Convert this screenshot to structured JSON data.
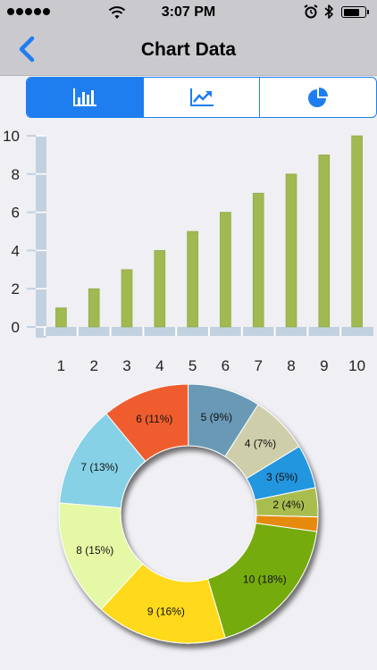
{
  "status_bar": {
    "time": "3:07 PM",
    "signal_bars": 5,
    "battery_level": 0.75,
    "icons": [
      "signal-dots-icon",
      "wifi-icon",
      "alarm-icon",
      "bluetooth-icon",
      "battery-icon"
    ]
  },
  "nav": {
    "title": "Chart Data",
    "back_icon": "chevron-left-icon"
  },
  "segmented_control": {
    "segments": [
      {
        "icon": "bar-chart-icon",
        "selected": true
      },
      {
        "icon": "line-chart-icon",
        "selected": false
      },
      {
        "icon": "pie-chart-icon",
        "selected": false
      }
    ]
  },
  "colors": {
    "accent": "#1e7ef0",
    "bar": "#a0b950",
    "axis": "#c2d1e0",
    "background": "#efeff4"
  },
  "chart_data": [
    {
      "type": "bar",
      "categories": [
        "1",
        "2",
        "3",
        "4",
        "5",
        "6",
        "7",
        "8",
        "9",
        "10"
      ],
      "values": [
        1,
        2,
        3,
        4,
        5,
        6,
        7,
        8,
        9,
        10
      ],
      "y_ticks": [
        "0",
        "2",
        "4",
        "6",
        "8",
        "10"
      ],
      "ylim": [
        0,
        10
      ]
    },
    {
      "type": "pie",
      "donut": true,
      "slices": [
        {
          "label": "1",
          "value": 1,
          "display": "",
          "color": "#e58a0c"
        },
        {
          "label": "2",
          "value": 2,
          "display": "2 (4%)",
          "color": "#a9bd50"
        },
        {
          "label": "3",
          "value": 3,
          "display": "3 (5%)",
          "color": "#2396de"
        },
        {
          "label": "4",
          "value": 4,
          "display": "4 (7%)",
          "color": "#cfceaa"
        },
        {
          "label": "5",
          "value": 5,
          "display": "5 (9%)",
          "color": "#6b99b6"
        },
        {
          "label": "6",
          "value": 6,
          "display": "6 (11%)",
          "color": "#ef5d2d"
        },
        {
          "label": "7",
          "value": 7,
          "display": "7 (13%)",
          "color": "#87d1e6"
        },
        {
          "label": "8",
          "value": 8,
          "display": "8 (15%)",
          "color": "#e5f8a6"
        },
        {
          "label": "9",
          "value": 9,
          "display": "9 (16%)",
          "color": "#fed91e"
        },
        {
          "label": "10",
          "value": 10,
          "display": "10 (18%)",
          "color": "#76ab0c"
        }
      ]
    }
  ]
}
